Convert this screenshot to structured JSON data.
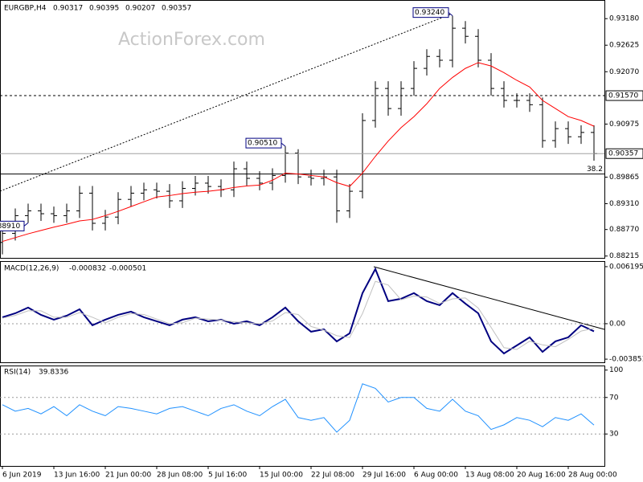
{
  "chart_data": [
    {
      "type": "ohlc",
      "title": "EURGBP,H4",
      "quote": [
        0.90317,
        0.90395,
        0.90207,
        0.90357
      ],
      "watermark": "ActionForex.com",
      "categories": [
        "6 Jun 2019",
        null,
        null,
        null,
        "13 Jun 16:00",
        null,
        null,
        null,
        "21 Jun 00:00",
        null,
        null,
        null,
        "28 Jun 08:00",
        null,
        null,
        null,
        "5 Jul 16:00",
        null,
        null,
        null,
        "15 Jul 00:00",
        null,
        null,
        null,
        "22 Jul 08:00",
        null,
        null,
        null,
        "29 Jul 16:00",
        null,
        null,
        null,
        "6 Aug 00:00",
        null,
        null,
        null,
        "13 Aug 08:00",
        null,
        null,
        null,
        "20 Aug 16:00",
        null,
        null,
        null,
        "28 Aug 00:00",
        null,
        null
      ],
      "open": [
        0.885,
        0.8869,
        0.8906,
        0.8916,
        0.891,
        0.8906,
        0.8916,
        0.8953,
        0.889,
        0.8903,
        0.894,
        0.8953,
        0.896,
        0.8957,
        0.8937,
        0.8963,
        0.8974,
        0.8967,
        0.896,
        0.9004,
        0.8984,
        0.8974,
        0.899,
        0.9037,
        0.8987,
        0.8984,
        0.8987,
        0.8916,
        0.8957,
        0.9105,
        0.9172,
        0.913,
        0.9172,
        0.9214,
        0.9239,
        0.9231,
        0.9298,
        0.9281,
        0.9231,
        0.9172,
        0.9147,
        0.9147,
        0.9138,
        0.9063,
        0.9088,
        0.9071,
        0.908
      ],
      "high": [
        0.8884,
        0.8921,
        0.8931,
        0.8931,
        0.8925,
        0.8931,
        0.8968,
        0.8968,
        0.8918,
        0.8955,
        0.8968,
        0.8975,
        0.8975,
        0.8972,
        0.8978,
        0.8989,
        0.8989,
        0.8982,
        0.9019,
        0.9019,
        0.8999,
        0.9005,
        0.9051,
        0.9045,
        0.9002,
        0.9002,
        0.9002,
        0.8972,
        0.912,
        0.9187,
        0.9187,
        0.9187,
        0.9229,
        0.9254,
        0.9254,
        0.9324,
        0.9313,
        0.9296,
        0.9246,
        0.9187,
        0.9162,
        0.9162,
        0.9153,
        0.9103,
        0.9103,
        0.9095,
        0.9095
      ],
      "low": [
        0.8825,
        0.8854,
        0.8891,
        0.8895,
        0.8891,
        0.8891,
        0.8901,
        0.8875,
        0.8875,
        0.8888,
        0.8925,
        0.8938,
        0.8942,
        0.8922,
        0.8922,
        0.8948,
        0.8952,
        0.8945,
        0.8945,
        0.8969,
        0.8959,
        0.8959,
        0.8975,
        0.8972,
        0.8969,
        0.8969,
        0.8891,
        0.8901,
        0.8942,
        0.909,
        0.9115,
        0.9115,
        0.9157,
        0.9199,
        0.9216,
        0.9216,
        0.9266,
        0.9216,
        0.9157,
        0.9132,
        0.9132,
        0.9123,
        0.9048,
        0.9048,
        0.9056,
        0.9056,
        0.9021
      ],
      "close": [
        0.8869,
        0.8906,
        0.8916,
        0.891,
        0.8906,
        0.8916,
        0.8953,
        0.889,
        0.8903,
        0.894,
        0.8953,
        0.896,
        0.8957,
        0.8937,
        0.8963,
        0.8974,
        0.8967,
        0.896,
        0.9004,
        0.8984,
        0.8974,
        0.899,
        0.9037,
        0.8987,
        0.8984,
        0.8987,
        0.8916,
        0.8957,
        0.9105,
        0.9172,
        0.913,
        0.9172,
        0.9214,
        0.9239,
        0.9231,
        0.9298,
        0.9281,
        0.9231,
        0.9172,
        0.9147,
        0.9147,
        0.9138,
        0.9063,
        0.9088,
        0.9071,
        0.908,
        0.90357
      ],
      "color": "#000000",
      "series": [
        {
          "color": "#ff0000",
          "values": [
            0.8852,
            0.886,
            0.8868,
            0.8875,
            0.8882,
            0.8888,
            0.8895,
            0.8898,
            0.8906,
            0.8915,
            0.8925,
            0.8935,
            0.8945,
            0.8948,
            0.8952,
            0.8955,
            0.8957,
            0.896,
            0.8965,
            0.8968,
            0.897,
            0.898,
            0.8995,
            0.8993,
            0.899,
            0.8987,
            0.8975,
            0.8967,
            0.8995,
            0.903,
            0.9062,
            0.909,
            0.9113,
            0.914,
            0.9172,
            0.9195,
            0.9214,
            0.9226,
            0.9219,
            0.9205,
            0.9189,
            0.9175,
            0.9147,
            0.913,
            0.9113,
            0.9105,
            0.9093
          ]
        }
      ],
      "ylim": [
        0.8816,
        0.9357
      ],
      "yticks": [
        {
          "value": 0.9318,
          "label": "0.93180"
        },
        0.92625,
        {
          "value": 0.9207,
          "label": "0.92070"
        },
        0.90975,
        0.89865,
        {
          "value": 0.8931,
          "label": "0.89310"
        },
        {
          "value": 0.8877,
          "label": "0.88770"
        },
        0.88215
      ],
      "levels": [
        {
          "value": 0.9157,
          "label": "0.91570"
        }
      ],
      "fib": {
        "value": 0.8993,
        "label": "38.2"
      },
      "annotations": [
        {
          "value": 0.9324,
          "label": "0.93240"
        },
        {
          "value": 0.9051,
          "label": "0.90510"
        },
        {
          "value": 0.8891,
          "label": "0.88910"
        }
      ]
    },
    {
      "type": "line",
      "title": "MACD(12,26,9)",
      "last": [
        -0.000832,
        -0.000501
      ],
      "series": [
        {
          "color": "#000080",
          "values": [
            0.0007,
            0.00113,
            0.00175,
            0.00096,
            0.00044,
            0.00087,
            0.00157,
            -0.00017,
            0.00044,
            0.00096,
            0.00131,
            0.0007,
            0.00026,
            -0.00017,
            0.00044,
            0.0007,
            0.00026,
            0.00044,
            0,
            0.00026,
            -0.00017,
            0.0007,
            0.00175,
            0.00026,
            -0.00087,
            -0.00061,
            -0.00192,
            -0.00105,
            0.00332,
            0.00594,
            0.00245,
            0.00271,
            0.00332,
            0.00245,
            0.00201,
            0.00332,
            0.00218,
            0.00113,
            -0.00192,
            -0.00323,
            -0.00236,
            -0.00148,
            -0.00306,
            -0.00192,
            -0.00148,
            -0.00017,
            -0.00083
          ]
        },
        {
          "color": "#c0c0c0",
          "values": [
            0.0006,
            0.0009,
            0.0014,
            0.0014,
            0.0007,
            0.0007,
            0.0012,
            0.0007,
            0.0001,
            0.0007,
            0.0011,
            0.001,
            0.0005,
            0.0,
            0.0001,
            0.0006,
            0.0005,
            0.0004,
            0.0002,
            0.0001,
            0.0,
            0.0003,
            0.0012,
            0.001,
            -0.0003,
            -0.0007,
            -0.0013,
            -0.0015,
            0.0011,
            0.0046,
            0.0042,
            0.0026,
            0.003,
            0.0029,
            0.0022,
            0.0027,
            0.0028,
            0.0017,
            -0.0004,
            -0.0026,
            -0.0028,
            -0.0019,
            -0.0023,
            -0.0025,
            -0.0017,
            -0.0008,
            -0.0005
          ]
        }
      ],
      "ylim": [
        -0.00428,
        0.0068
      ],
      "yticks": [
        0.006195,
        {
          "value": 0,
          "label": "0.00"
        },
        -0.003851
      ],
      "levels": [
        0
      ]
    },
    {
      "type": "line",
      "title": "RSI(14)",
      "last": [
        39.8336
      ],
      "series": [
        {
          "color": "#1e90ff",
          "values": [
            62,
            55,
            58,
            52,
            60,
            50,
            62,
            55,
            50,
            60,
            58,
            55,
            52,
            58,
            60,
            55,
            50,
            58,
            62,
            55,
            50,
            60,
            68,
            48,
            45,
            48,
            32,
            45,
            85,
            80,
            65,
            70,
            70,
            58,
            55,
            68,
            55,
            50,
            35,
            40,
            48,
            45,
            38,
            48,
            45,
            52,
            39.8
          ]
        }
      ],
      "ylim": [
        -5,
        105
      ],
      "yticks": [
        100,
        70,
        30
      ],
      "levels": [
        70,
        30
      ]
    }
  ]
}
